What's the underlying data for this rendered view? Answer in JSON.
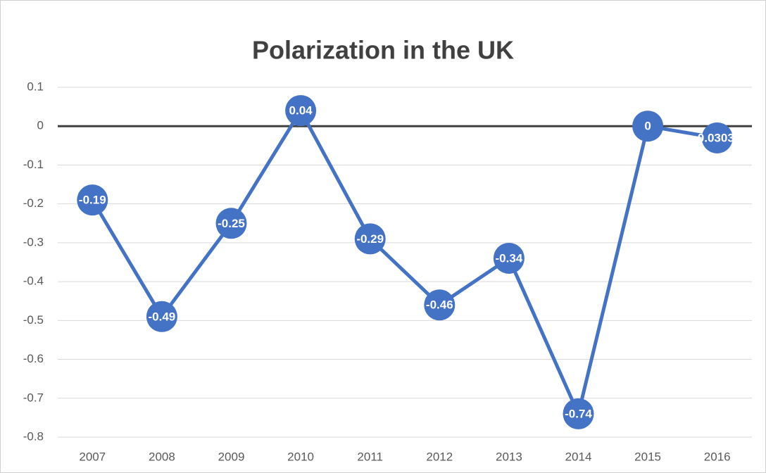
{
  "chart_data": {
    "type": "line",
    "title": "Polarization in the UK",
    "categories": [
      "2007",
      "2008",
      "2009",
      "2010",
      "2011",
      "2012",
      "2013",
      "2014",
      "2015",
      "2016"
    ],
    "series": [
      {
        "name": "Polarization",
        "color": "#4472c4",
        "values": [
          -0.19,
          -0.49,
          -0.25,
          0.04,
          -0.29,
          -0.46,
          -0.34,
          -0.74,
          0,
          -0.0303
        ],
        "value_labels": [
          "-0.19",
          "-0.49",
          "-0.25",
          "0.04",
          "-0.29",
          "-0.46",
          "-0.34",
          "-0.74",
          "0",
          "-0.03030"
        ]
      }
    ],
    "ylim": [
      -0.8,
      0.1
    ],
    "yticks": [
      0.1,
      0,
      -0.1,
      -0.2,
      -0.3,
      -0.4,
      -0.5,
      -0.6,
      -0.7,
      -0.8
    ],
    "grid": true
  }
}
